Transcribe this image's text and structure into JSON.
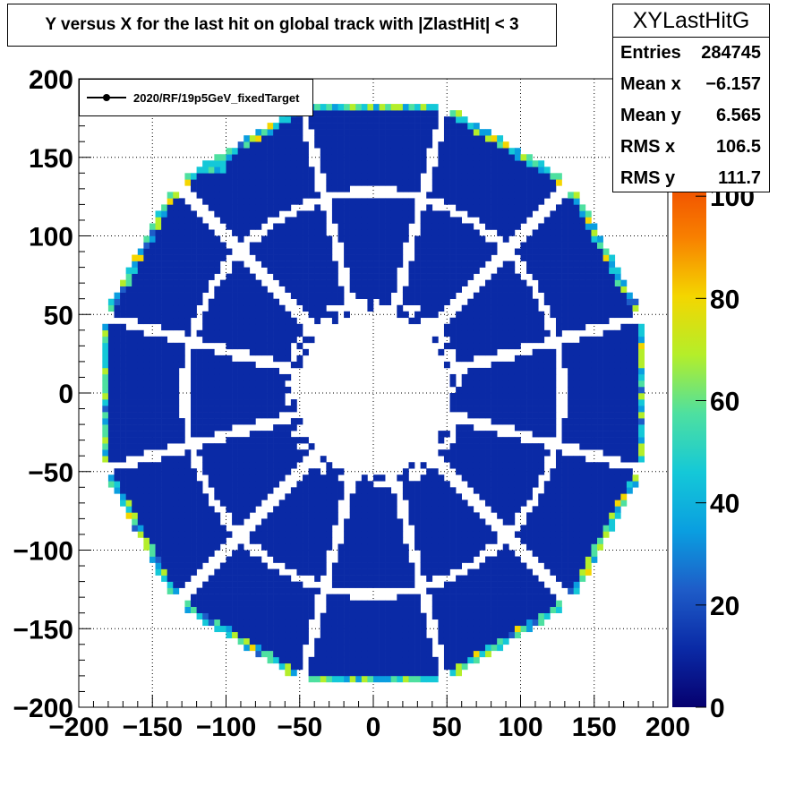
{
  "title": "Y versus X for the last hit on global track with |ZlastHit| < 3",
  "stats": {
    "name": "XYLastHitG",
    "rows": [
      {
        "label": "Entries",
        "value": "284745"
      },
      {
        "label": "Mean x",
        "value": "−6.157"
      },
      {
        "label": "Mean y",
        "value": "6.565"
      },
      {
        "label": "RMS x",
        "value": "106.5"
      },
      {
        "label": "RMS y",
        "value": "111.7"
      }
    ]
  },
  "legend": {
    "entry": "2020/RF/19p5GeV_fixedTarget"
  },
  "colors": {
    "frame": "#000000",
    "grid": "#000000",
    "bulk_fill": "#1f4aa3",
    "palette": [
      "#06006f",
      "#0a2aa6",
      "#1e5cc8",
      "#0a9ee0",
      "#14c8d8",
      "#4ee0a0",
      "#b4ee2a",
      "#f4d600",
      "#f88000",
      "#f04a00"
    ]
  },
  "chart_data": {
    "type": "heatmap",
    "title": "Y versus X for the last hit on global track with |ZlastHit| < 3",
    "xlabel": "",
    "ylabel": "",
    "xlim": [
      -200,
      200
    ],
    "ylim": [
      -200,
      200
    ],
    "x_ticks": [
      "−200",
      "−150",
      "−100",
      "−50",
      "0",
      "50",
      "100",
      "150",
      "200"
    ],
    "y_ticks": [
      "200",
      "150",
      "100",
      "50",
      "0",
      "−50",
      "−100",
      "−150",
      "−200"
    ],
    "grid": true,
    "colorbar": {
      "range": [
        0,
        120
      ],
      "ticks": [
        "0",
        "20",
        "40",
        "60",
        "80",
        "100"
      ]
    },
    "legend_position": "top-left",
    "geometry_values": {
      "sectors": 12,
      "inner_hole_radius": 52,
      "ring_boundary_radius": 128,
      "outer_radius": 190,
      "typical_bin_content": 12,
      "hot_edge_content": 60
    }
  }
}
